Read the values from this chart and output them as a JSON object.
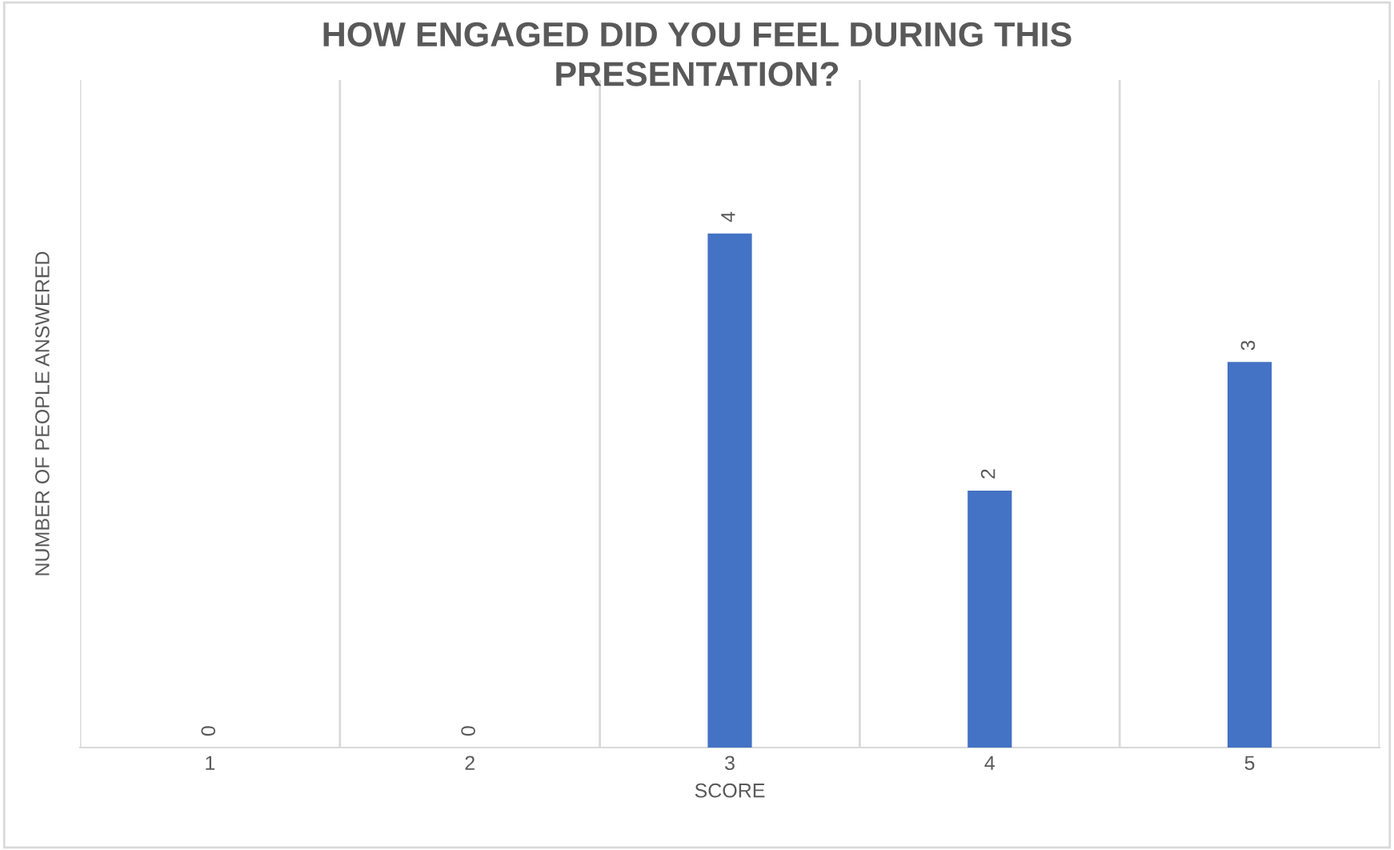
{
  "chart_data": {
    "type": "bar",
    "title": "HOW ENGAGED DID YOU FEEL DURING THIS\nPRESENTATION?",
    "xlabel": "SCORE",
    "ylabel": "NUMBER OF PEOPLE ANSWERED",
    "categories": [
      "1",
      "2",
      "3",
      "4",
      "5"
    ],
    "values": [
      0,
      0,
      4,
      2,
      3
    ],
    "color": "#4472c4",
    "data_labels": true,
    "grid": "x",
    "legend": false
  }
}
